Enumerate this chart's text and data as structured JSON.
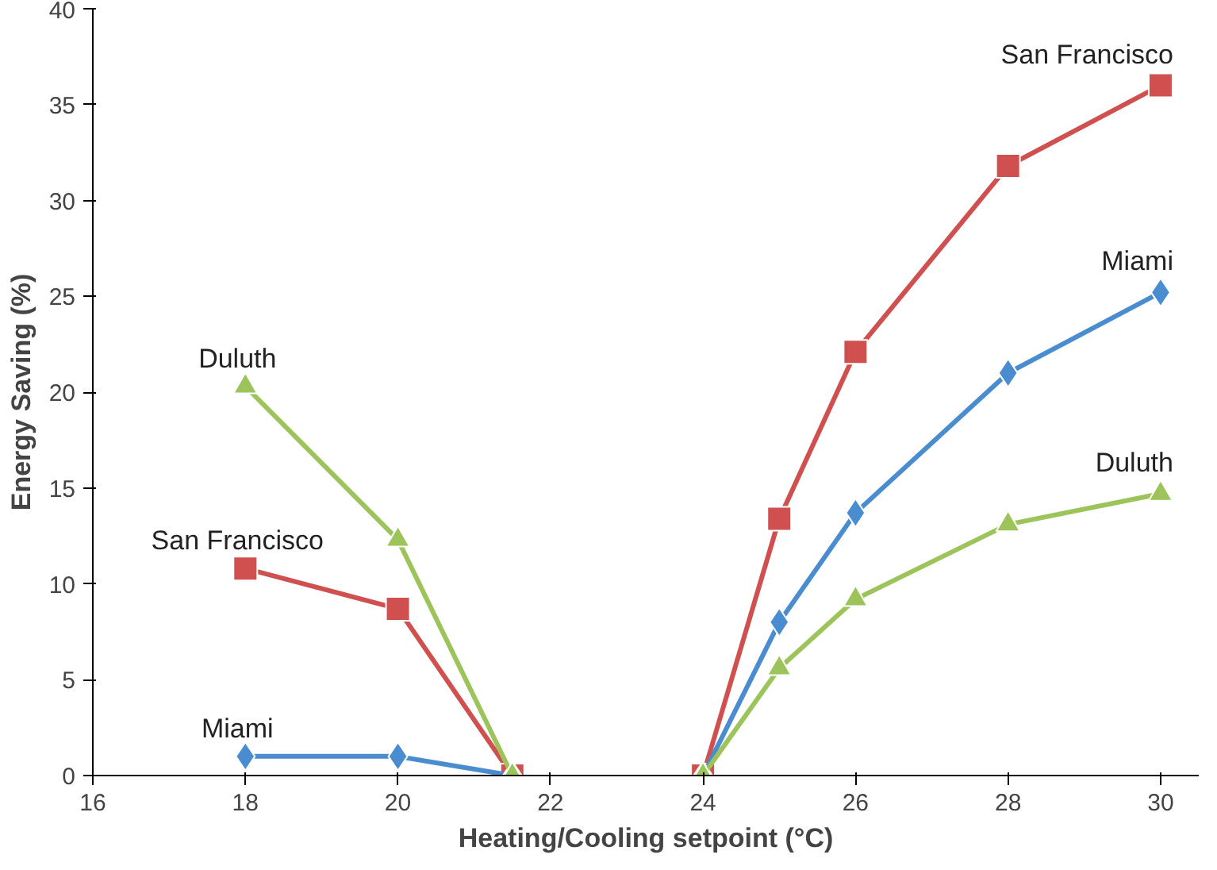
{
  "chart_data": {
    "type": "line",
    "xlabel": "Heating/Cooling setpoint (°C)",
    "ylabel": "Energy Saving (%)",
    "series": [
      {
        "name": "San Francisco",
        "color": "#d05050",
        "marker": "square",
        "x": [
          18,
          20,
          21.5
        ],
        "values": [
          10.8,
          8.7,
          0
        ]
      },
      {
        "name": "Miami",
        "color": "#4a8cd0",
        "marker": "diamond",
        "x": [
          18,
          20,
          21.5
        ],
        "values": [
          1.0,
          1.0,
          0
        ]
      },
      {
        "name": "Duluth",
        "color": "#9cc45a",
        "marker": "triangle",
        "x": [
          18,
          20,
          21.5
        ],
        "values": [
          20.3,
          12.3,
          0
        ]
      },
      {
        "name": "San Francisco",
        "color": "#d05050",
        "marker": "square",
        "x": [
          24,
          25,
          26,
          28,
          30
        ],
        "values": [
          0,
          13.4,
          22.1,
          31.8,
          36
        ]
      },
      {
        "name": "Miami",
        "color": "#4a8cd0",
        "marker": "diamond",
        "x": [
          24,
          25,
          26,
          28,
          30
        ],
        "values": [
          0,
          8.0,
          13.7,
          21.0,
          25.2
        ]
      },
      {
        "name": "Duluth",
        "color": "#9cc45a",
        "marker": "triangle",
        "x": [
          24,
          25,
          26,
          28,
          30
        ],
        "values": [
          0,
          5.6,
          9.2,
          13.1,
          14.7
        ]
      }
    ],
    "xlim": [
      16,
      30.5
    ],
    "ylim": [
      0,
      40
    ],
    "xticks": [
      16,
      18,
      20,
      22,
      24,
      26,
      28,
      30
    ],
    "yticks": [
      0,
      5,
      10,
      15,
      20,
      25,
      30,
      35,
      40
    ],
    "grid": false
  }
}
